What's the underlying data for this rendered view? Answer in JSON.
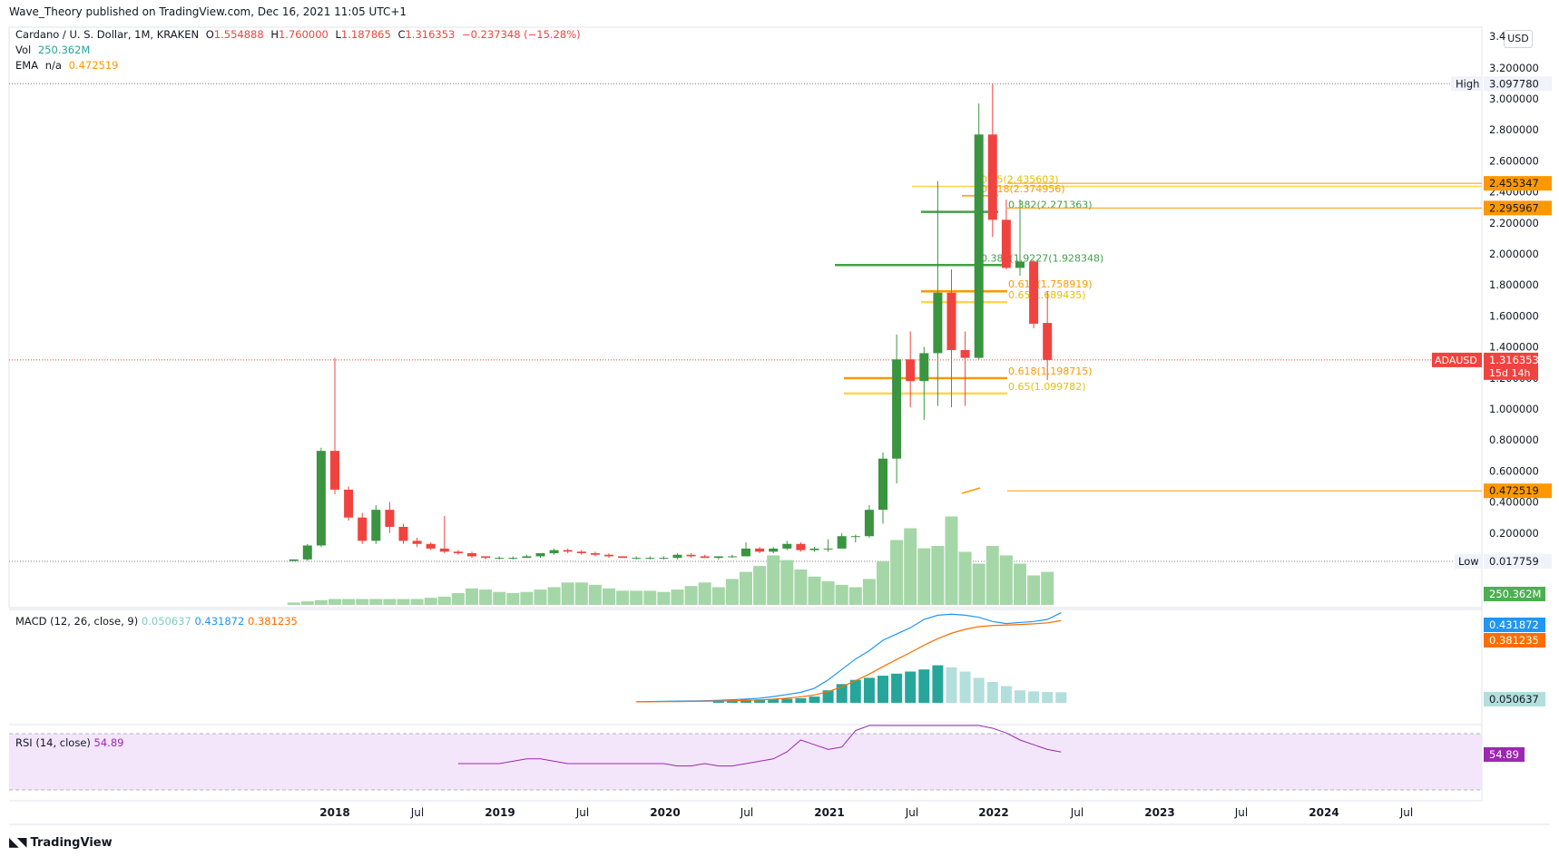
{
  "header": {
    "publisher": "Wave_Theory published on TradingView.com, Dec 16, 2021 11:05 UTC+1",
    "symbol": "Cardano / U. S. Dollar, 1M, KRAKEN",
    "ohlc": {
      "o_label": "O",
      "o": "1.554888",
      "h_label": "H",
      "h": "1.760000",
      "l_label": "L",
      "l": "1.187865",
      "c_label": "C",
      "c": "1.316353",
      "change": "−0.237348 (−15.28%)"
    },
    "vol_label": "Vol",
    "vol_value": "250.362M",
    "ema_label": "EMA",
    "ema_na": "n/a",
    "ema_value": "0.472519"
  },
  "macd_legend": {
    "label": "MACD (12, 26, close, 9)",
    "hist": "0.050637",
    "macd": "0.431872",
    "signal": "0.381235"
  },
  "rsi_legend": {
    "label": "RSI (14, close)",
    "value": "54.89"
  },
  "currency": "USD",
  "footer": {
    "brand": "TradingView"
  },
  "colors": {
    "up": "#26a69a",
    "upBody": "#3a9440",
    "down": "#f0433f",
    "accent_orange": "#ff9800",
    "macd_line": "#2196f3",
    "signal_line": "#ff6d00",
    "rsi_line": "#9c27b0",
    "rsi_band": "#f3e6fb",
    "volume": "#a5d6a7"
  },
  "chart_data": {
    "type": "candlestick",
    "price_axis": {
      "ticks": [
        "3.200000",
        "3.000000",
        "2.800000",
        "2.600000",
        "2.400000",
        "2.200000",
        "2.000000",
        "1.800000",
        "1.600000",
        "1.400000",
        "1.200000",
        "1.000000",
        "0.800000",
        "0.600000",
        "0.400000",
        "0.200000"
      ],
      "top_cut": "3.4",
      "high_label": "High",
      "high_value": "3.097780",
      "low_label": "Low",
      "low_value": "0.017759",
      "last_label": "ADAUSD",
      "last_value": "1.316353",
      "countdown": "15d 14h",
      "badges": [
        {
          "value": "2.455347",
          "price": 2.455347,
          "color": "#ff9800"
        },
        {
          "value": "2.295967",
          "price": 2.295967,
          "color": "#ff9800"
        },
        {
          "value": "0.472519",
          "price": 0.472519,
          "color": "#ff9800"
        }
      ],
      "volume_badge": "250.362M"
    },
    "time_axis": [
      "2018",
      "Jul",
      "2019",
      "Jul",
      "2020",
      "Jul",
      "2021",
      "Jul",
      "2022",
      "Jul",
      "2023",
      "Jul",
      "2024",
      "Jul"
    ],
    "fib_levels": [
      {
        "label": "0.65(2.435603)",
        "price": 2.435603,
        "color": "#ffd54f"
      },
      {
        "label": "0.618(2.374956)",
        "price": 2.374956,
        "color": "#ff9800"
      },
      {
        "label": "0.382(2.271363)",
        "price": 2.271363,
        "color": "#43a047"
      },
      {
        "label": "0.382(1.9227(1.928348)",
        "price": 1.928348,
        "color": "#43a047"
      },
      {
        "label": "0.618(1.758919)",
        "price": 1.758919,
        "color": "#ff9800"
      },
      {
        "label": "0.65(1.689435)",
        "price": 1.689435,
        "color": "#ffd54f"
      },
      {
        "label": "0.618(1.198715)",
        "price": 1.198715,
        "color": "#ff9800"
      },
      {
        "label": "0.65(1.099782)",
        "price": 1.099782,
        "color": "#ffd54f"
      }
    ],
    "candles": [
      {
        "o": 0.02,
        "h": 0.03,
        "l": 0.02,
        "c": 0.03
      },
      {
        "o": 0.03,
        "h": 0.13,
        "l": 0.02,
        "c": 0.12
      },
      {
        "o": 0.12,
        "h": 0.75,
        "l": 0.11,
        "c": 0.73
      },
      {
        "o": 0.73,
        "h": 1.33,
        "l": 0.45,
        "c": 0.48
      },
      {
        "o": 0.48,
        "h": 0.5,
        "l": 0.28,
        "c": 0.3
      },
      {
        "o": 0.3,
        "h": 0.33,
        "l": 0.13,
        "c": 0.15
      },
      {
        "o": 0.15,
        "h": 0.38,
        "l": 0.13,
        "c": 0.35
      },
      {
        "o": 0.35,
        "h": 0.4,
        "l": 0.2,
        "c": 0.24
      },
      {
        "o": 0.24,
        "h": 0.26,
        "l": 0.13,
        "c": 0.15
      },
      {
        "o": 0.15,
        "h": 0.17,
        "l": 0.11,
        "c": 0.13
      },
      {
        "o": 0.13,
        "h": 0.14,
        "l": 0.09,
        "c": 0.1
      },
      {
        "o": 0.1,
        "h": 0.31,
        "l": 0.07,
        "c": 0.08
      },
      {
        "o": 0.08,
        "h": 0.09,
        "l": 0.06,
        "c": 0.07
      },
      {
        "o": 0.07,
        "h": 0.08,
        "l": 0.04,
        "c": 0.05
      },
      {
        "o": 0.05,
        "h": 0.05,
        "l": 0.03,
        "c": 0.04
      },
      {
        "o": 0.04,
        "h": 0.05,
        "l": 0.03,
        "c": 0.04
      },
      {
        "o": 0.04,
        "h": 0.05,
        "l": 0.03,
        "c": 0.04
      },
      {
        "o": 0.04,
        "h": 0.06,
        "l": 0.04,
        "c": 0.05
      },
      {
        "o": 0.05,
        "h": 0.07,
        "l": 0.04,
        "c": 0.07
      },
      {
        "o": 0.07,
        "h": 0.1,
        "l": 0.06,
        "c": 0.09
      },
      {
        "o": 0.09,
        "h": 0.1,
        "l": 0.07,
        "c": 0.08
      },
      {
        "o": 0.08,
        "h": 0.09,
        "l": 0.06,
        "c": 0.07
      },
      {
        "o": 0.07,
        "h": 0.08,
        "l": 0.05,
        "c": 0.06
      },
      {
        "o": 0.06,
        "h": 0.07,
        "l": 0.04,
        "c": 0.05
      },
      {
        "o": 0.05,
        "h": 0.05,
        "l": 0.04,
        "c": 0.04
      },
      {
        "o": 0.04,
        "h": 0.05,
        "l": 0.03,
        "c": 0.04
      },
      {
        "o": 0.04,
        "h": 0.05,
        "l": 0.03,
        "c": 0.04
      },
      {
        "o": 0.04,
        "h": 0.05,
        "l": 0.03,
        "c": 0.04
      },
      {
        "o": 0.04,
        "h": 0.07,
        "l": 0.03,
        "c": 0.06
      },
      {
        "o": 0.06,
        "h": 0.07,
        "l": 0.04,
        "c": 0.05
      },
      {
        "o": 0.05,
        "h": 0.06,
        "l": 0.04,
        "c": 0.04
      },
      {
        "o": 0.04,
        "h": 0.05,
        "l": 0.03,
        "c": 0.05
      },
      {
        "o": 0.05,
        "h": 0.06,
        "l": 0.04,
        "c": 0.05
      },
      {
        "o": 0.05,
        "h": 0.14,
        "l": 0.05,
        "c": 0.1
      },
      {
        "o": 0.1,
        "h": 0.11,
        "l": 0.07,
        "c": 0.08
      },
      {
        "o": 0.08,
        "h": 0.11,
        "l": 0.07,
        "c": 0.1
      },
      {
        "o": 0.1,
        "h": 0.15,
        "l": 0.09,
        "c": 0.13
      },
      {
        "o": 0.13,
        "h": 0.14,
        "l": 0.08,
        "c": 0.09
      },
      {
        "o": 0.09,
        "h": 0.11,
        "l": 0.08,
        "c": 0.1
      },
      {
        "o": 0.1,
        "h": 0.16,
        "l": 0.08,
        "c": 0.1
      },
      {
        "o": 0.1,
        "h": 0.2,
        "l": 0.1,
        "c": 0.18
      },
      {
        "o": 0.18,
        "h": 0.19,
        "l": 0.14,
        "c": 0.18
      },
      {
        "o": 0.18,
        "h": 0.38,
        "l": 0.17,
        "c": 0.35
      },
      {
        "o": 0.35,
        "h": 0.72,
        "l": 0.26,
        "c": 0.68
      },
      {
        "o": 0.68,
        "h": 1.48,
        "l": 0.52,
        "c": 1.32
      },
      {
        "o": 1.32,
        "h": 1.5,
        "l": 1.01,
        "c": 1.18
      },
      {
        "o": 1.18,
        "h": 1.4,
        "l": 0.93,
        "c": 1.36
      },
      {
        "o": 1.36,
        "h": 2.47,
        "l": 1.02,
        "c": 1.75
      },
      {
        "o": 1.75,
        "h": 1.9,
        "l": 1.01,
        "c": 1.38
      },
      {
        "o": 1.38,
        "h": 1.5,
        "l": 1.02,
        "c": 1.33
      },
      {
        "o": 1.33,
        "h": 2.97,
        "l": 1.32,
        "c": 2.77
      },
      {
        "o": 2.77,
        "h": 3.1,
        "l": 2.11,
        "c": 2.22
      },
      {
        "o": 2.22,
        "h": 2.35,
        "l": 1.9,
        "c": 1.91
      },
      {
        "o": 1.91,
        "h": 2.35,
        "l": 1.86,
        "c": 1.95
      },
      {
        "o": 1.95,
        "h": 1.96,
        "l": 1.52,
        "c": 1.55
      },
      {
        "o": 1.554888,
        "h": 1.76,
        "l": 1.187865,
        "c": 1.316353
      }
    ],
    "volume": [
      2,
      3,
      4,
      5,
      5,
      5,
      5,
      5,
      5,
      5,
      6,
      7,
      10,
      14,
      13,
      11,
      10,
      11,
      13,
      15,
      19,
      19,
      17,
      14,
      12,
      12,
      12,
      11,
      13,
      16,
      19,
      15,
      22,
      28,
      33,
      42,
      38,
      30,
      24,
      20,
      17,
      15,
      22,
      37,
      55,
      65,
      48,
      50,
      75,
      45,
      35,
      50,
      42,
      35,
      25,
      28
    ],
    "macd": {
      "start_index": 25,
      "macd_line": [
        0.005,
        0.006,
        0.007,
        0.008,
        0.009,
        0.01,
        0.012,
        0.015,
        0.018,
        0.022,
        0.03,
        0.04,
        0.05,
        0.07,
        0.11,
        0.16,
        0.21,
        0.25,
        0.3,
        0.33,
        0.36,
        0.4,
        0.42,
        0.425,
        0.42,
        0.41,
        0.39,
        0.38,
        0.385,
        0.39,
        0.4,
        0.431872
      ],
      "histogram": [
        0,
        0,
        0,
        0,
        0,
        0,
        0.012,
        0.014,
        0.015,
        0.016,
        0.018,
        0.02,
        0.022,
        0.03,
        0.06,
        0.09,
        0.11,
        0.12,
        0.13,
        0.14,
        0.15,
        0.16,
        0.18,
        0.17,
        0.15,
        0.12,
        0.1,
        0.08,
        0.06,
        0.055,
        0.052,
        0.050637
      ]
    },
    "rsi": {
      "start_index": 12,
      "values": [
        50,
        50,
        50,
        50,
        51,
        52,
        52,
        51,
        50,
        50,
        50,
        50,
        50,
        50,
        50,
        50,
        49,
        49,
        50,
        49,
        49,
        50,
        51,
        52,
        55,
        60,
        58,
        56,
        57,
        64,
        80,
        88,
        85,
        82,
        80,
        78,
        76,
        72,
        68,
        65,
        63,
        60,
        58,
        56,
        54.89
      ]
    }
  }
}
